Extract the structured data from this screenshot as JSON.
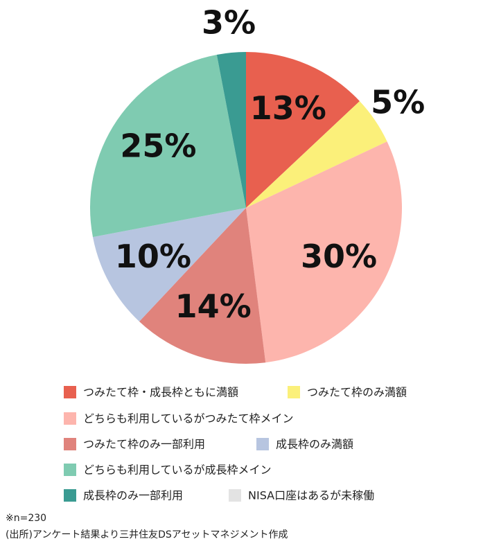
{
  "chart_data": {
    "type": "pie",
    "categories": [
      "つみたて枠・成長枠ともに満額",
      "つみたて枠のみ満額",
      "どちらも利用しているがつみたて枠メイン",
      "つみたて枠のみ一部利用",
      "成長枠のみ満額",
      "どちらも利用しているが成長枠メイン",
      "成長枠のみ一部利用",
      "NISA口座はあるが未稼働"
    ],
    "values": [
      13,
      5,
      30,
      14,
      10,
      25,
      3,
      0
    ],
    "value_labels": [
      "13%",
      "5%",
      "30%",
      "14%",
      "10%",
      "25%",
      "3%",
      null
    ],
    "colors": [
      "#e8604f",
      "#fbf07a",
      "#fdb5ad",
      "#e0837c",
      "#b7c5e0",
      "#7fcbb1",
      "#3a9b92",
      "#e3e3e3"
    ],
    "legend": "bottom",
    "notes": [
      "※n=230",
      "(出所)アンケート結果より三井住友DSアセットマネジメント作成"
    ]
  }
}
